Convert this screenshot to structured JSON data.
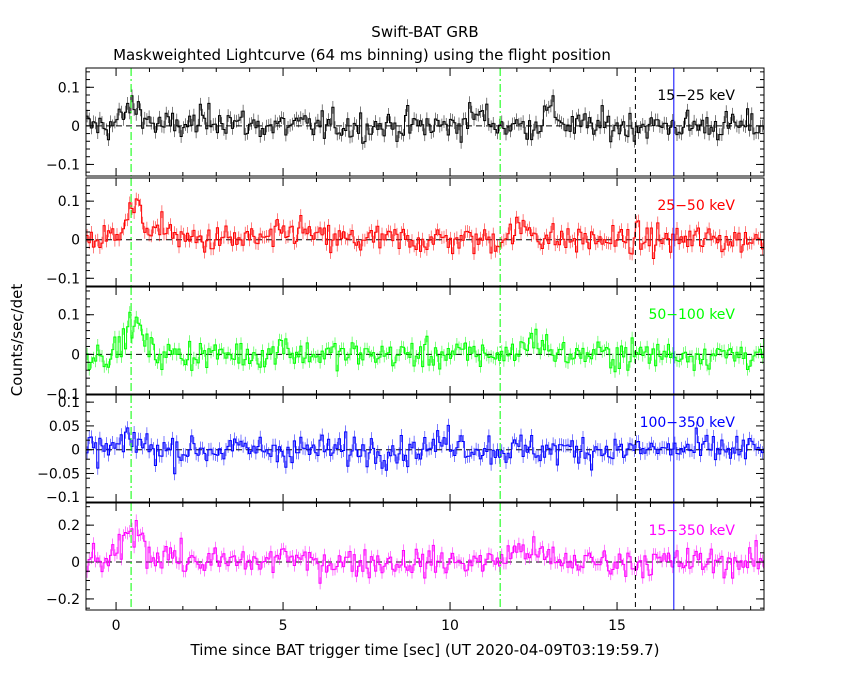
{
  "title": "Swift-BAT GRB",
  "subtitle": "Maskweighted Lightcurve (64 ms binning) using the flight position",
  "xlabel": "Time since BAT trigger time [sec] (UT 2020-04-09T03:19:59.7)",
  "ylabel": "Counts/sec/det",
  "chart_data": {
    "type": "line",
    "title": "Swift-BAT GRB",
    "subtitle": "Maskweighted Lightcurve (64 ms binning) using the flight position",
    "xlabel": "Time since BAT trigger time [sec] (UT 2020-04-09T03:19:59.7)",
    "ylabel": "Counts/sec/det",
    "xlim": [
      -0.9,
      19.4
    ],
    "binning_sec": 0.064,
    "x_ticks": [
      0,
      5,
      10,
      15
    ],
    "grid": false,
    "panels": [
      {
        "name": "15-25 keV",
        "label": "15−25 keV",
        "color": "#000000",
        "ylim": [
          -0.13,
          0.15
        ],
        "yticks": [
          {
            "v": 0.1,
            "t": "0.1"
          },
          {
            "v": 0,
            "t": "0"
          },
          {
            "v": -0.1,
            "t": "−0.1"
          }
        ],
        "noise": 0.03,
        "bumps": [
          [
            0.5,
            0.05,
            0.4
          ],
          [
            3.0,
            0.02,
            0.6
          ],
          [
            10.8,
            0.03,
            0.4
          ],
          [
            13.0,
            0.04,
            0.3
          ]
        ]
      },
      {
        "name": "25-50 keV",
        "label": "25−50 keV",
        "color": "#ff0000",
        "ylim": [
          -0.12,
          0.16
        ],
        "yticks": [
          {
            "v": 0.1,
            "t": "0.1"
          },
          {
            "v": 0,
            "t": "0"
          },
          {
            "v": -0.1,
            "t": "−0.1"
          }
        ],
        "noise": 0.03,
        "bumps": [
          [
            0.5,
            0.08,
            0.45
          ],
          [
            1.5,
            0.04,
            0.2
          ],
          [
            5.4,
            0.025,
            0.5
          ],
          [
            12.2,
            0.03,
            0.5
          ]
        ]
      },
      {
        "name": "50-100 keV",
        "label": "50−100 keV",
        "color": "#00ff00",
        "ylim": [
          -0.1,
          0.17
        ],
        "yticks": [
          {
            "v": 0.1,
            "t": "0.1"
          },
          {
            "v": 0,
            "t": "0"
          },
          {
            "v": -0.1,
            "t": "−0.1"
          }
        ],
        "noise": 0.028,
        "bumps": [
          [
            0.5,
            0.08,
            0.35
          ],
          [
            5.0,
            0.04,
            0.15
          ],
          [
            12.5,
            0.04,
            0.4
          ]
        ]
      },
      {
        "name": "100-350 keV",
        "label": "100−350 keV",
        "color": "#0000ff",
        "ylim": [
          -0.11,
          0.115
        ],
        "yticks": [
          {
            "v": 0.1,
            "t": "0.1"
          },
          {
            "v": 0.05,
            "t": "0.05"
          },
          {
            "v": 0,
            "t": "0"
          },
          {
            "v": -0.05,
            "t": "−0.05"
          },
          {
            "v": -0.1,
            "t": "−0.1"
          }
        ],
        "noise": 0.025,
        "bumps": [
          [
            0.5,
            0.02,
            0.4
          ],
          [
            10.0,
            0.02,
            0.5
          ]
        ]
      },
      {
        "name": "15-350 keV",
        "label": "15−350 keV",
        "color": "#ff00ff",
        "ylim": [
          -0.26,
          0.32
        ],
        "yticks": [
          {
            "v": 0.2,
            "t": "0.2"
          },
          {
            "v": 0,
            "t": "0"
          },
          {
            "v": -0.2,
            "t": "−0.2"
          }
        ],
        "noise": 0.06,
        "bumps": [
          [
            0.5,
            0.18,
            0.4
          ],
          [
            1.5,
            0.06,
            0.3
          ],
          [
            5.0,
            0.08,
            0.15
          ],
          [
            12.2,
            0.07,
            0.6
          ]
        ]
      }
    ],
    "vlines": [
      {
        "x": 0.45,
        "color": "#00ff00",
        "style": "dashdot"
      },
      {
        "x": 11.5,
        "color": "#00ff00",
        "style": "dashdot"
      },
      {
        "x": 15.55,
        "color": "#000000",
        "style": "dash"
      },
      {
        "x": 16.7,
        "color": "#0000ff",
        "style": "solid"
      }
    ]
  }
}
